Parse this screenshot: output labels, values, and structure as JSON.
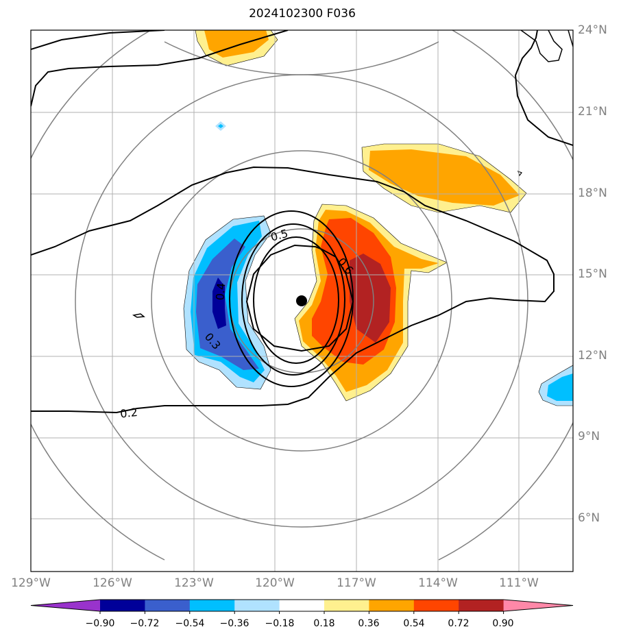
{
  "title": "2024102300 F036",
  "lat_labels": [
    "24°N",
    "21°N",
    "18°N",
    "15°N",
    "12°N",
    "9°N",
    "6°N"
  ],
  "lon_labels": [
    "129°W",
    "126°W",
    "123°W",
    "120°W",
    "117°W",
    "114°W",
    "111°W"
  ],
  "contour_labels": [
    "0.5",
    "0.6",
    "0.4",
    "0.3",
    "0.2"
  ],
  "colorbar": {
    "tick_labels": [
      "−0.90",
      "−0.72",
      "−0.54",
      "−0.36",
      "−0.18",
      "0.18",
      "0.36",
      "0.54",
      "0.72",
      "0.90"
    ],
    "colors": [
      "#9933cc",
      "#000099",
      "#3a5fcd",
      "#00bfff",
      "#b0e2ff",
      "#ffffff",
      "#fff08f",
      "#ffa500",
      "#ff4500",
      "#b22222",
      "#ff88a8"
    ]
  },
  "fill_colors": {
    "neg_light": "#b0e2ff",
    "neg_mid": "#00bfff",
    "neg_strong": "#3a5fcd",
    "neg_max": "#000099",
    "pos_light": "#fff08f",
    "pos_mid": "#ffa500",
    "pos_strong": "#ff4500",
    "pos_max": "#b22222"
  }
}
